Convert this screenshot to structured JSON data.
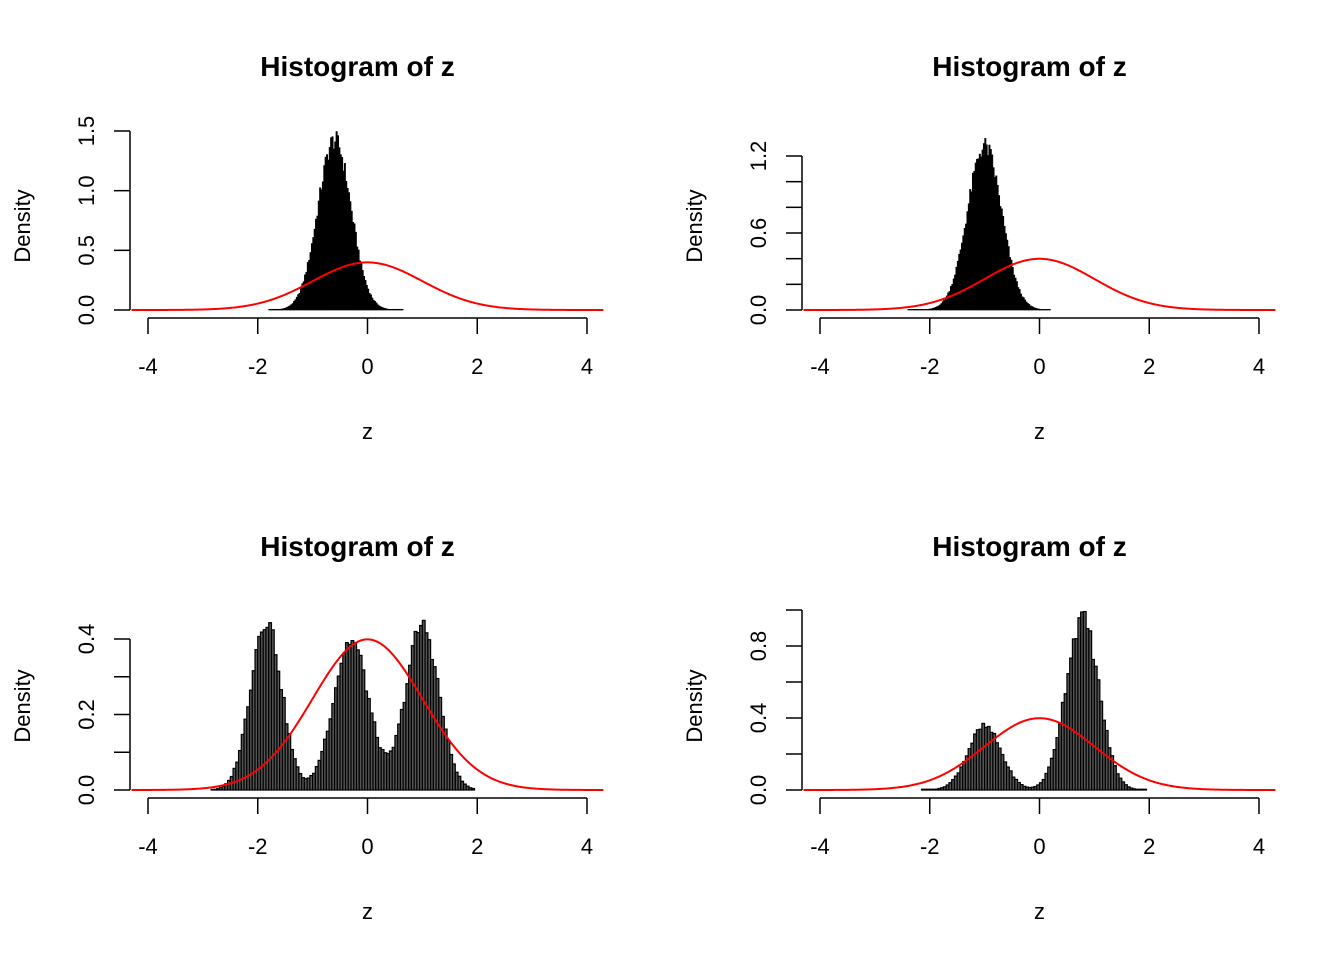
{
  "layout": "2x2 grid of histograms",
  "chart_data": [
    {
      "type": "bar",
      "position": "top-left",
      "title": "Histogram of z",
      "xlabel": "z",
      "ylabel": "Density",
      "xlim": [
        -4.3,
        4.3
      ],
      "ylim": [
        0,
        1.5
      ],
      "xticks": [
        -4,
        -2,
        0,
        2,
        4
      ],
      "xtick_labels": [
        "-4",
        "-2",
        "0",
        "2",
        "4"
      ],
      "yticks": [
        0.0,
        0.5,
        1.0,
        1.5
      ],
      "ytick_labels": [
        "0.0",
        "0.5",
        "1.0",
        "1.5"
      ],
      "bin_width": 0.025,
      "histogram": {
        "kind": "normal_mixture",
        "components": [
          {
            "mean": -0.6,
            "sd": 0.3,
            "weight": 1
          }
        ],
        "range": [
          -1.8,
          0.65
        ],
        "peak": 1.45
      },
      "reference_curve": {
        "name": "standard normal density",
        "mean": 0,
        "sd": 1,
        "color": "#ff0000"
      },
      "bar_fill": "#000000"
    },
    {
      "type": "bar",
      "position": "top-right",
      "title": "Histogram of z",
      "xlabel": "z",
      "ylabel": "Density",
      "xlim": [
        -4.3,
        4.3
      ],
      "ylim": [
        0,
        1.3
      ],
      "xticks": [
        -4,
        -2,
        0,
        2,
        4
      ],
      "xtick_labels": [
        "-4",
        "-2",
        "0",
        "2",
        "4"
      ],
      "yticks": [
        0.0,
        0.2,
        0.4,
        0.6,
        0.8,
        1.0,
        1.2
      ],
      "ytick_labels": [
        "0.0",
        "",
        "",
        "0.6",
        "",
        "",
        "1.2"
      ],
      "bin_width": 0.025,
      "histogram": {
        "kind": "normal_mixture",
        "components": [
          {
            "mean": -1.0,
            "sd": 0.31,
            "weight": 1
          }
        ],
        "range": [
          -2.4,
          0.2
        ],
        "peak": 1.3
      },
      "reference_curve": {
        "name": "standard normal density",
        "mean": 0,
        "sd": 1,
        "color": "#ff0000"
      },
      "bar_fill": "#000000"
    },
    {
      "type": "bar",
      "position": "bottom-left",
      "title": "Histogram of z",
      "xlabel": "z",
      "ylabel": "Density",
      "xlim": [
        -4.3,
        4.3
      ],
      "ylim": [
        0,
        0.45
      ],
      "xticks": [
        -4,
        -2,
        0,
        2,
        4
      ],
      "xtick_labels": [
        "-4",
        "-2",
        "0",
        "2",
        "4"
      ],
      "yticks": [
        0.0,
        0.1,
        0.2,
        0.3,
        0.4
      ],
      "ytick_labels": [
        "0.0",
        "",
        "0.2",
        "",
        "0.4"
      ],
      "bin_width": 0.05,
      "histogram": {
        "kind": "normal_mixture",
        "components": [
          {
            "mean": -1.85,
            "sd": 0.28,
            "weight": 0.33
          },
          {
            "mean": -0.3,
            "sd": 0.32,
            "weight": 0.33
          },
          {
            "mean": 1.0,
            "sd": 0.3,
            "weight": 0.34
          }
        ],
        "range": [
          -2.85,
          1.95
        ],
        "peak": 0.46
      },
      "reference_curve": {
        "name": "standard normal density",
        "mean": 0,
        "sd": 1,
        "color": "#ff0000"
      },
      "bar_fill": "#555555"
    },
    {
      "type": "bar",
      "position": "bottom-right",
      "title": "Histogram of z",
      "xlabel": "z",
      "ylabel": "Density",
      "xlim": [
        -4.3,
        4.3
      ],
      "ylim": [
        0,
        1.0
      ],
      "xticks": [
        -4,
        -2,
        0,
        2,
        4
      ],
      "xtick_labels": [
        "-4",
        "-2",
        "0",
        "2",
        "4"
      ],
      "yticks": [
        0.0,
        0.2,
        0.4,
        0.6,
        0.8,
        1.0
      ],
      "ytick_labels": [
        "0.0",
        "",
        "0.4",
        "",
        "0.8",
        ""
      ],
      "bin_width": 0.05,
      "histogram": {
        "kind": "normal_mixture",
        "components": [
          {
            "mean": -1.0,
            "sd": 0.3,
            "weight": 0.27
          },
          {
            "mean": 0.78,
            "sd": 0.3,
            "weight": 0.73
          }
        ],
        "range": [
          -2.15,
          1.95
        ],
        "peak": 0.97
      },
      "reference_curve": {
        "name": "standard normal density",
        "mean": 0,
        "sd": 1,
        "color": "#ff0000"
      },
      "bar_fill": "#555555"
    }
  ]
}
